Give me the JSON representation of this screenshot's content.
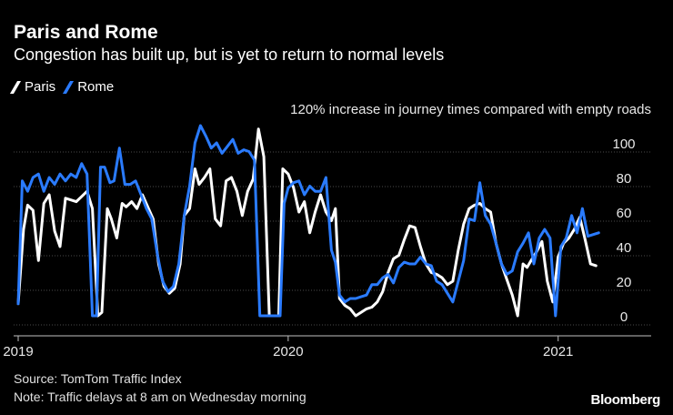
{
  "chart_data": {
    "type": "line",
    "title": "Paris and Rome",
    "subtitle": "Congestion has built up, but is yet to return to normal levels",
    "ylabel": "120% increase in journey times compared with empty roads",
    "xlabel": "",
    "ylim": [
      -5,
      110
    ],
    "xlim": [
      2019.0,
      2021.23
    ],
    "yticks": [
      "0",
      "20",
      "40",
      "60",
      "80",
      "100"
    ],
    "ytick_values": [
      0,
      20,
      40,
      60,
      80,
      100
    ],
    "xticks": [
      "2019",
      "2020",
      "2021"
    ],
    "xtick_values": [
      2019.0,
      2020.0,
      2021.0
    ],
    "legend_position": "top-left",
    "series": [
      {
        "name": "Paris",
        "color": "#ffffff",
        "x": [
          2019.0,
          2019.02,
          2019.035,
          2019.055,
          2019.075,
          2019.095,
          2019.115,
          2019.135,
          2019.155,
          2019.175,
          2019.195,
          2019.215,
          2019.235,
          2019.255,
          2019.275,
          2019.295,
          2019.31,
          2019.33,
          2019.345,
          2019.365,
          2019.385,
          2019.4,
          2019.42,
          2019.44,
          2019.46,
          2019.48,
          2019.5,
          2019.52,
          2019.54,
          2019.56,
          2019.58,
          2019.6,
          2019.615,
          2019.635,
          2019.655,
          2019.67,
          2019.69,
          2019.71,
          2019.73,
          2019.75,
          2019.77,
          2019.79,
          2019.81,
          2019.83,
          2019.85,
          2019.87,
          2019.89,
          2019.91,
          2019.93,
          2019.95,
          2019.965,
          2019.98,
          2020.0,
          2020.02,
          2020.04,
          2020.06,
          2020.08,
          2020.1,
          2020.12,
          2020.14,
          2020.16,
          2020.175,
          2020.19,
          2020.21,
          2020.23,
          2020.25,
          2020.27,
          2020.29,
          2020.31,
          2020.33,
          2020.35,
          2020.37,
          2020.39,
          2020.41,
          2020.43,
          2020.45,
          2020.47,
          2020.49,
          2020.51,
          2020.53,
          2020.55,
          2020.57,
          2020.59,
          2020.61,
          2020.63,
          2020.65,
          2020.67,
          2020.69,
          2020.71,
          2020.73,
          2020.75,
          2020.77,
          2020.79,
          2020.81,
          2020.83,
          2020.85,
          2020.87,
          2020.885,
          2020.9,
          2020.92,
          2020.94,
          2020.96,
          2020.98,
          2021.0,
          2021.02,
          2021.04,
          2021.06,
          2021.08,
          2021.1,
          2021.12,
          2021.14
        ],
        "values": [
          7,
          50,
          64,
          61,
          32,
          65,
          70,
          49,
          40,
          68,
          67,
          66,
          69,
          72,
          62,
          0,
          2,
          62,
          56,
          45,
          65,
          63,
          66,
          62,
          70,
          63,
          56,
          30,
          17,
          13,
          16,
          30,
          58,
          62,
          85,
          76,
          80,
          85,
          56,
          52,
          78,
          80,
          72,
          58,
          72,
          79,
          108,
          92,
          0,
          0,
          0,
          85,
          82,
          74,
          60,
          66,
          48,
          60,
          70,
          60,
          55,
          62,
          10,
          6,
          4,
          0,
          2,
          4,
          5,
          8,
          14,
          25,
          33,
          35,
          44,
          52,
          51,
          40,
          30,
          25,
          24,
          22,
          18,
          20,
          38,
          53,
          62,
          64,
          65,
          62,
          60,
          42,
          30,
          21,
          12,
          0,
          30,
          28,
          32,
          37,
          43,
          20,
          8,
          34,
          42,
          45,
          50,
          57,
          44,
          30,
          29
        ]
      },
      {
        "name": "Rome",
        "color": "#2a7bff",
        "x": [
          2019.0,
          2019.015,
          2019.035,
          2019.055,
          2019.075,
          2019.095,
          2019.115,
          2019.135,
          2019.155,
          2019.175,
          2019.195,
          2019.215,
          2019.235,
          2019.255,
          2019.275,
          2019.29,
          2019.305,
          2019.32,
          2019.34,
          2019.355,
          2019.375,
          2019.395,
          2019.415,
          2019.435,
          2019.455,
          2019.475,
          2019.495,
          2019.515,
          2019.535,
          2019.555,
          2019.575,
          2019.595,
          2019.615,
          2019.635,
          2019.655,
          2019.675,
          2019.695,
          2019.715,
          2019.735,
          2019.755,
          2019.775,
          2019.795,
          2019.815,
          2019.835,
          2019.855,
          2019.875,
          2019.895,
          2019.915,
          2019.935,
          2019.955,
          2019.97,
          2019.985,
          2020.0,
          2020.02,
          2020.04,
          2020.06,
          2020.08,
          2020.1,
          2020.12,
          2020.14,
          2020.16,
          2020.175,
          2020.19,
          2020.21,
          2020.23,
          2020.25,
          2020.27,
          2020.29,
          2020.31,
          2020.33,
          2020.35,
          2020.37,
          2020.39,
          2020.41,
          2020.43,
          2020.45,
          2020.47,
          2020.49,
          2020.51,
          2020.53,
          2020.55,
          2020.57,
          2020.59,
          2020.61,
          2020.63,
          2020.65,
          2020.67,
          2020.69,
          2020.71,
          2020.73,
          2020.75,
          2020.77,
          2020.79,
          2020.81,
          2020.83,
          2020.85,
          2020.87,
          2020.89,
          2020.91,
          2020.93,
          2020.95,
          2020.97,
          2020.99,
          2021.01,
          2021.03,
          2021.05,
          2021.07,
          2021.09,
          2021.11,
          2021.13,
          2021.15
        ],
        "values": [
          7,
          78,
          72,
          80,
          82,
          72,
          80,
          76,
          82,
          78,
          82,
          80,
          88,
          82,
          0,
          0,
          86,
          86,
          77,
          78,
          97,
          76,
          76,
          78,
          70,
          62,
          56,
          36,
          20,
          14,
          17,
          30,
          58,
          75,
          100,
          110,
          104,
          97,
          100,
          94,
          98,
          102,
          94,
          96,
          95,
          90,
          0,
          0,
          0,
          0,
          0,
          65,
          74,
          77,
          78,
          70,
          75,
          72,
          72,
          80,
          38,
          31,
          12,
          8,
          10,
          10,
          11,
          12,
          18,
          18,
          22,
          24,
          19,
          28,
          31,
          30,
          30,
          34,
          30,
          29,
          20,
          18,
          13,
          8,
          20,
          32,
          56,
          55,
          77,
          58,
          53,
          42,
          30,
          24,
          26,
          37,
          42,
          48,
          30,
          45,
          50,
          45,
          0,
          40,
          45,
          58,
          48,
          62,
          46,
          47,
          48
        ]
      }
    ]
  },
  "footer": {
    "source": "Source: TomTom Traffic Index",
    "note": "Note: Traffic delays at 8 am on Wednesday morning"
  },
  "brand": "Bloomberg",
  "colors": {
    "background": "#000000",
    "grid": "#4a4a4a",
    "paris": "#ffffff",
    "rome": "#2a7bff"
  }
}
